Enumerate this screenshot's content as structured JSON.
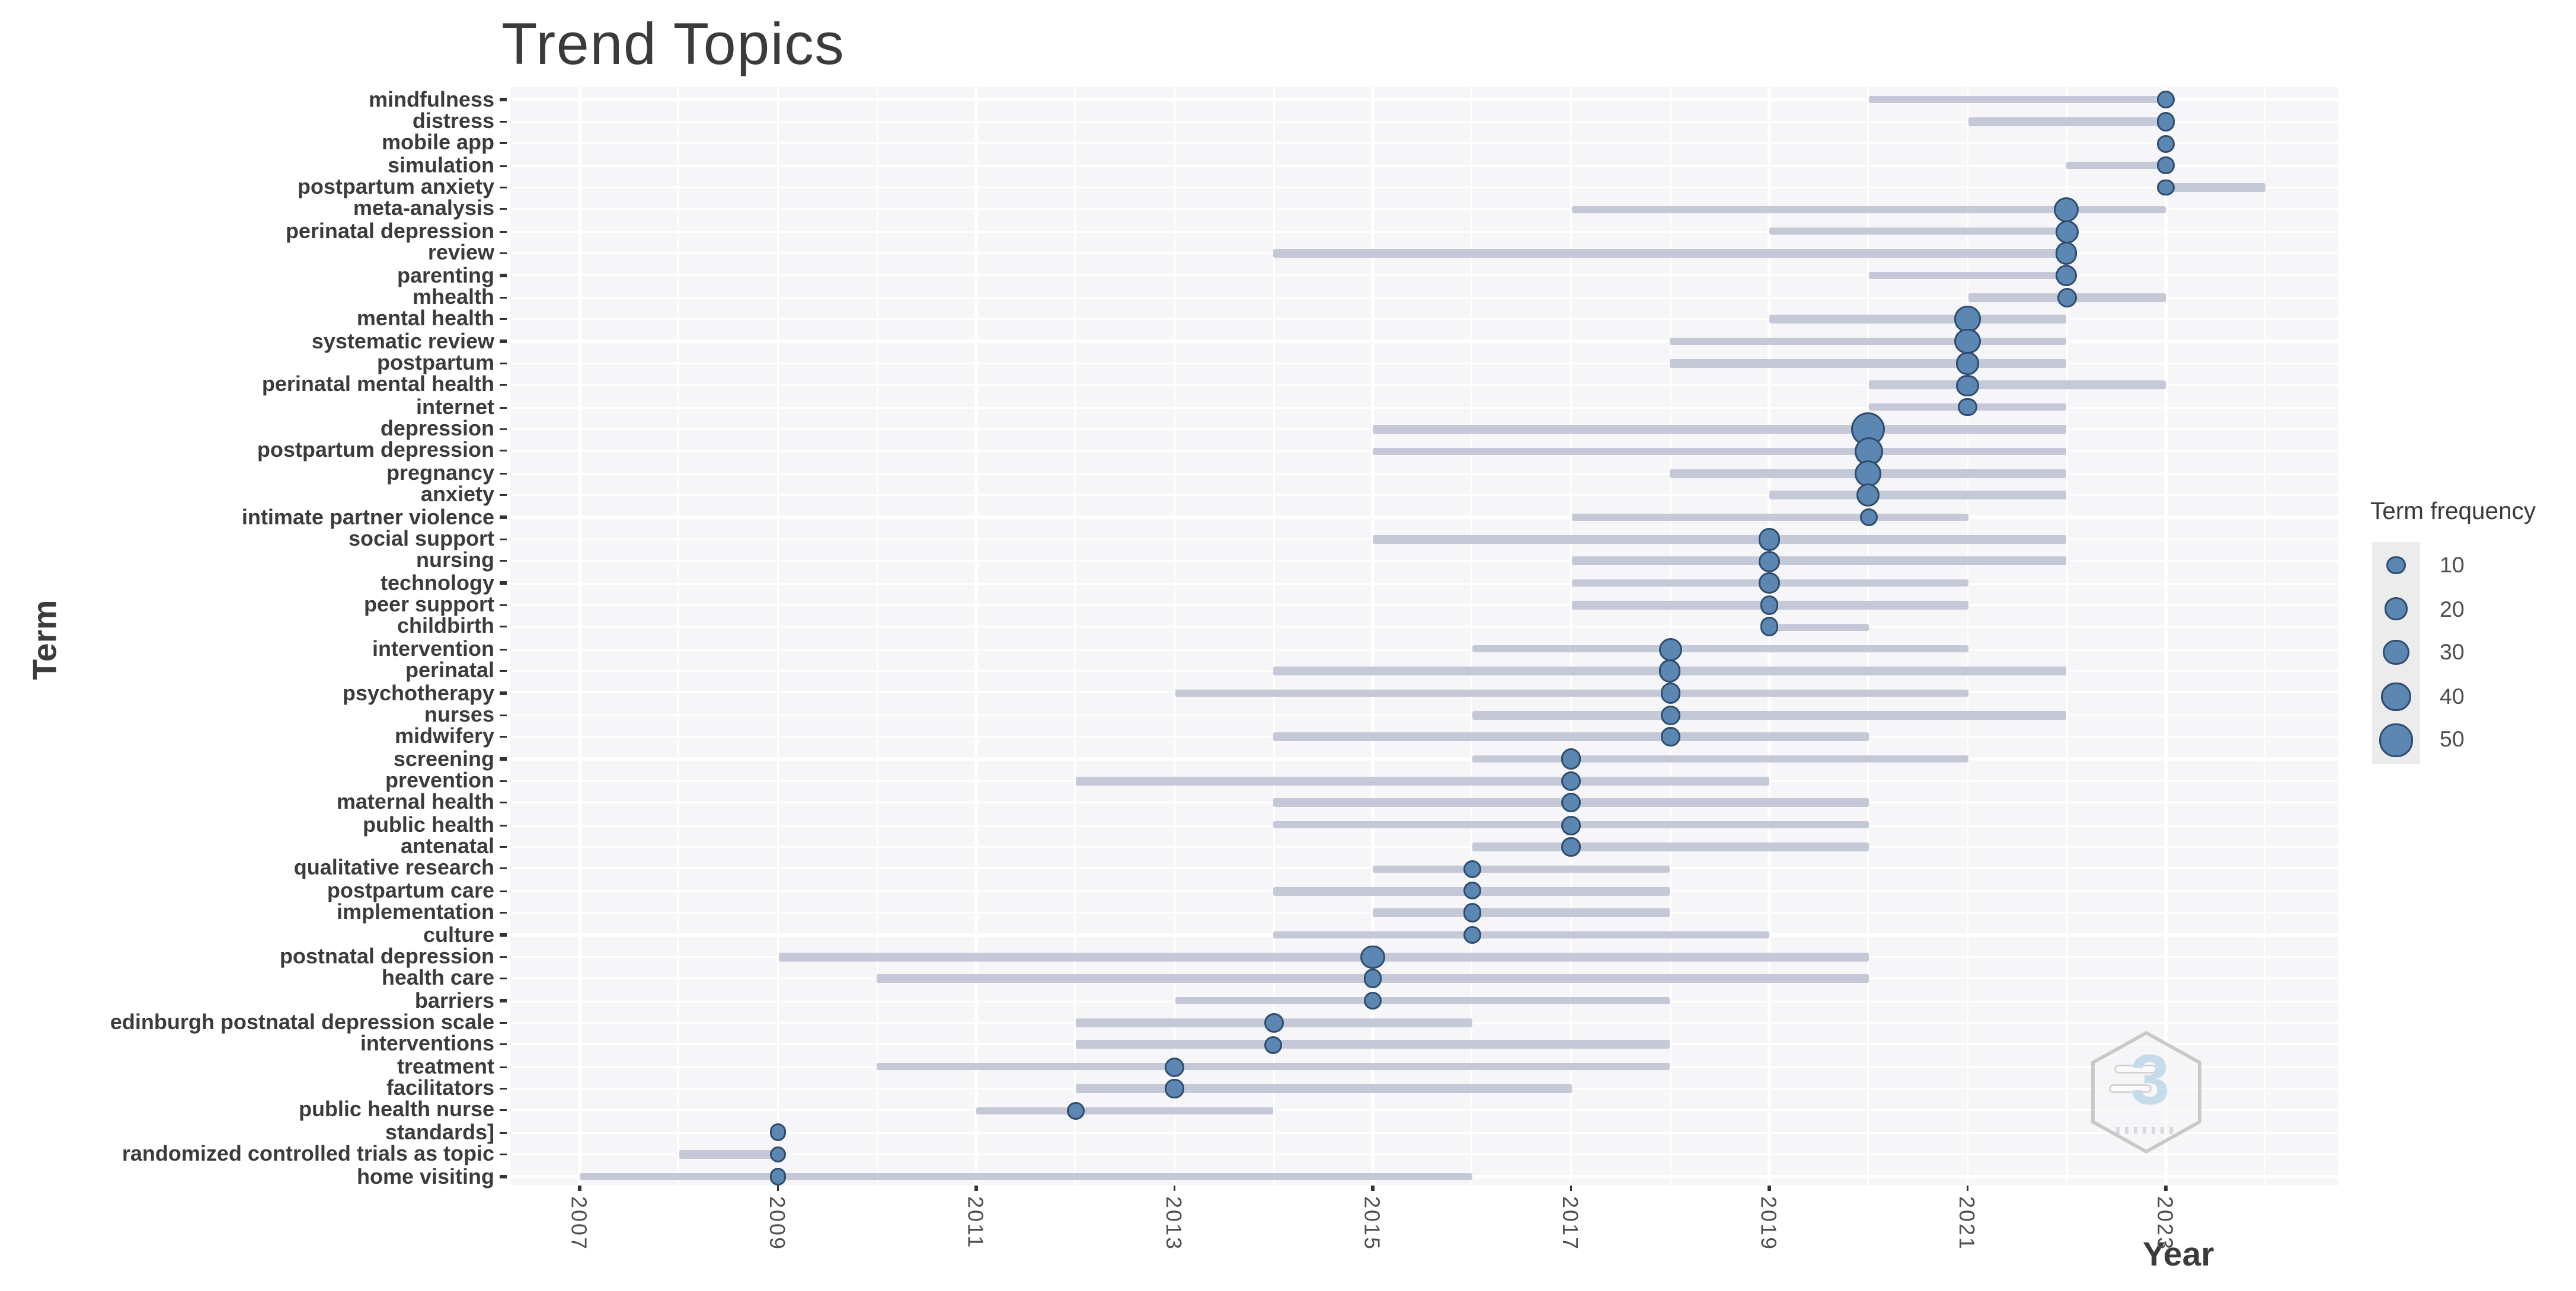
{
  "title": "Trend Topics",
  "axes": {
    "x_label": "Year",
    "y_label": "Term"
  },
  "legend": {
    "title": "Term frequency",
    "sizes": [
      10,
      20,
      30,
      40,
      50
    ]
  },
  "watermark": {
    "glyph": "3"
  },
  "colors": {
    "dot_fill": "#5d87b3",
    "dot_stroke": "#2e4d6e",
    "range_line": "#c5c8d7",
    "panel_bg": "#f6f6f8",
    "grid_line": "#ffffff",
    "title_text": "#3b3b3b",
    "axis_tick_text": "#4d4d4d",
    "tick_mark": "#333333",
    "legend_key_bg": "#ececec",
    "watermark_outline": "#b9b9b9",
    "watermark_glyph": "#b5d3e6"
  },
  "chart_data": {
    "type": "scatter",
    "subtype": "trend-topics-bubble-range",
    "title": "Trend Topics",
    "xlabel": "Year",
    "ylabel": "Term",
    "legend_title": "Term frequency",
    "legend_position": "right",
    "legend_sizes": [
      10,
      20,
      30,
      40,
      50
    ],
    "grid": true,
    "x_ticks": [
      2007,
      2009,
      2011,
      2013,
      2015,
      2017,
      2019,
      2021,
      2023
    ],
    "x_range": [
      2006.3,
      2024.7
    ],
    "note": "Each term: gray line spans first-to-last quartile years; bubble at peak year sized by term frequency",
    "terms": [
      {
        "term": "mindfulness",
        "freq": 10,
        "start": 2020,
        "peak": 2023,
        "end": 2023
      },
      {
        "term": "distress",
        "freq": 8,
        "start": 2021,
        "peak": 2023,
        "end": 2023
      },
      {
        "term": "mobile app",
        "freq": 6,
        "start": 2023,
        "peak": 2023,
        "end": 2023
      },
      {
        "term": "simulation",
        "freq": 5,
        "start": 2022,
        "peak": 2023,
        "end": 2023
      },
      {
        "term": "postpartum anxiety",
        "freq": 5,
        "start": 2023,
        "peak": 2023,
        "end": 2024
      },
      {
        "term": "meta-analysis",
        "freq": 28,
        "start": 2017,
        "peak": 2022,
        "end": 2023
      },
      {
        "term": "perinatal depression",
        "freq": 24,
        "start": 2019,
        "peak": 2022,
        "end": 2022
      },
      {
        "term": "review",
        "freq": 18,
        "start": 2014,
        "peak": 2022,
        "end": 2022
      },
      {
        "term": "parenting",
        "freq": 17,
        "start": 2020,
        "peak": 2022,
        "end": 2022
      },
      {
        "term": "mhealth",
        "freq": 12,
        "start": 2021,
        "peak": 2022,
        "end": 2023
      },
      {
        "term": "mental health",
        "freq": 30,
        "start": 2019,
        "peak": 2021,
        "end": 2022
      },
      {
        "term": "systematic review",
        "freq": 30,
        "start": 2018,
        "peak": 2021,
        "end": 2022
      },
      {
        "term": "postpartum",
        "freq": 20,
        "start": 2018,
        "peak": 2021,
        "end": 2022
      },
      {
        "term": "perinatal mental health",
        "freq": 17,
        "start": 2020,
        "peak": 2021,
        "end": 2023
      },
      {
        "term": "internet",
        "freq": 7,
        "start": 2020,
        "peak": 2021,
        "end": 2022
      },
      {
        "term": "depression",
        "freq": 55,
        "start": 2015,
        "peak": 2020,
        "end": 2022
      },
      {
        "term": "postpartum depression",
        "freq": 40,
        "start": 2015,
        "peak": 2020,
        "end": 2022
      },
      {
        "term": "pregnancy",
        "freq": 33,
        "start": 2018,
        "peak": 2020,
        "end": 2022
      },
      {
        "term": "anxiety",
        "freq": 22,
        "start": 2019,
        "peak": 2020,
        "end": 2022
      },
      {
        "term": "intimate partner violence",
        "freq": 8,
        "start": 2017,
        "peak": 2020,
        "end": 2021
      },
      {
        "term": "social support",
        "freq": 20,
        "start": 2015,
        "peak": 2019,
        "end": 2022
      },
      {
        "term": "nursing",
        "freq": 17,
        "start": 2017,
        "peak": 2019,
        "end": 2022
      },
      {
        "term": "technology",
        "freq": 15,
        "start": 2017,
        "peak": 2019,
        "end": 2021
      },
      {
        "term": "peer support",
        "freq": 11,
        "start": 2017,
        "peak": 2019,
        "end": 2021
      },
      {
        "term": "childbirth",
        "freq": 10,
        "start": 2019,
        "peak": 2019,
        "end": 2020
      },
      {
        "term": "intervention",
        "freq": 22,
        "start": 2016,
        "peak": 2018,
        "end": 2021
      },
      {
        "term": "perinatal",
        "freq": 18,
        "start": 2014,
        "peak": 2018,
        "end": 2022
      },
      {
        "term": "psychotherapy",
        "freq": 14,
        "start": 2013,
        "peak": 2018,
        "end": 2021
      },
      {
        "term": "nurses",
        "freq": 11,
        "start": 2016,
        "peak": 2018,
        "end": 2022
      },
      {
        "term": "midwifery",
        "freq": 10,
        "start": 2014,
        "peak": 2018,
        "end": 2020
      },
      {
        "term": "screening",
        "freq": 15,
        "start": 2016,
        "peak": 2017,
        "end": 2021
      },
      {
        "term": "prevention",
        "freq": 13,
        "start": 2012,
        "peak": 2017,
        "end": 2019
      },
      {
        "term": "maternal health",
        "freq": 12,
        "start": 2014,
        "peak": 2017,
        "end": 2020
      },
      {
        "term": "public health",
        "freq": 11,
        "start": 2014,
        "peak": 2017,
        "end": 2020
      },
      {
        "term": "antenatal",
        "freq": 9,
        "start": 2016,
        "peak": 2017,
        "end": 2020
      },
      {
        "term": "qualitative research",
        "freq": 8,
        "start": 2015,
        "peak": 2016,
        "end": 2018
      },
      {
        "term": "postpartum care",
        "freq": 8,
        "start": 2014,
        "peak": 2016,
        "end": 2018
      },
      {
        "term": "implementation",
        "freq": 8,
        "start": 2015,
        "peak": 2016,
        "end": 2018
      },
      {
        "term": "culture",
        "freq": 8,
        "start": 2014,
        "peak": 2016,
        "end": 2019
      },
      {
        "term": "postnatal depression",
        "freq": 25,
        "start": 2009,
        "peak": 2015,
        "end": 2020
      },
      {
        "term": "health care",
        "freq": 9,
        "start": 2010,
        "peak": 2015,
        "end": 2020
      },
      {
        "term": "barriers",
        "freq": 8,
        "start": 2013,
        "peak": 2015,
        "end": 2018
      },
      {
        "term": "edinburgh postnatal depression scale",
        "freq": 11,
        "start": 2012,
        "peak": 2014,
        "end": 2016
      },
      {
        "term": "interventions",
        "freq": 9,
        "start": 2012,
        "peak": 2014,
        "end": 2018
      },
      {
        "term": "treatment",
        "freq": 13,
        "start": 2010,
        "peak": 2013,
        "end": 2018
      },
      {
        "term": "facilitators",
        "freq": 9,
        "start": 2012,
        "peak": 2013,
        "end": 2017
      },
      {
        "term": "public health nurse",
        "freq": 7,
        "start": 2011,
        "peak": 2012,
        "end": 2014
      },
      {
        "term": "standards]",
        "freq": 5,
        "start": 2009,
        "peak": 2009,
        "end": 2009
      },
      {
        "term": "randomized controlled trials as topic",
        "freq": 5,
        "start": 2008,
        "peak": 2009,
        "end": 2009
      },
      {
        "term": "home visiting",
        "freq": 6,
        "start": 2007,
        "peak": 2009,
        "end": 2016
      }
    ]
  }
}
